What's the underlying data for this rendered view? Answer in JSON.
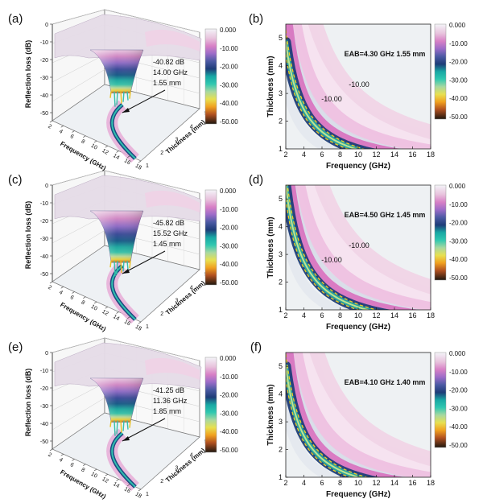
{
  "figure": {
    "panels": [
      "(a)",
      "(b)",
      "(c)",
      "(d)",
      "(e)",
      "(f)"
    ]
  },
  "colorbar": {
    "ticks": [
      "0.000",
      "-10.00",
      "-20.00",
      "-30.00",
      "-40.00",
      "-50.00"
    ]
  },
  "chart_data": [
    {
      "panel": "(a)",
      "type": "surface3d",
      "zlabel": "Reflection loss (dB)",
      "xlabel": "Frequency (GHz)",
      "ylabel": "Thickness (mm)",
      "zticks": [
        "0",
        "-10",
        "-20",
        "-30",
        "-40",
        "-50"
      ],
      "xticks": [
        "2",
        "4",
        "6",
        "8",
        "10",
        "12",
        "14",
        "16",
        "18"
      ],
      "yticks": [
        "1",
        "2",
        "3",
        "4",
        "5"
      ],
      "annotation": [
        "-40.82 dB",
        "14.00 GHz",
        "1.55 mm"
      ],
      "min_rl": -40.82,
      "freq": 14.0,
      "thickness": 1.55,
      "zlim": [
        -50,
        0
      ]
    },
    {
      "panel": "(b)",
      "type": "heatmap",
      "xlabel": "Frequency (GHz)",
      "ylabel": "Thickness (mm)",
      "xticks": [
        "2",
        "4",
        "6",
        "8",
        "10",
        "12",
        "14",
        "16",
        "18"
      ],
      "yticks": [
        "1",
        "2",
        "3",
        "4",
        "5"
      ],
      "xlim": [
        2,
        18
      ],
      "ylim": [
        1,
        5.5
      ],
      "eab": "EAB=4.30 GHz 1.55 mm",
      "contour_labels": [
        "-10.00",
        "-10.00"
      ],
      "curve_k": 9.7,
      "valley": -40.82
    },
    {
      "panel": "(c)",
      "type": "surface3d",
      "zlabel": "Reflection loss (dB)",
      "xlabel": "Frequency (GHz)",
      "ylabel": "Thickness (mm)",
      "zticks": [
        "0",
        "-10",
        "-20",
        "-30",
        "-40",
        "-50"
      ],
      "xticks": [
        "2",
        "4",
        "6",
        "8",
        "10",
        "12",
        "14",
        "16",
        "18"
      ],
      "yticks": [
        "1",
        "2",
        "3",
        "4",
        "5"
      ],
      "annotation": [
        "-45.82 dB",
        "15.52 GHz",
        "1.45 mm"
      ],
      "min_rl": -45.82,
      "freq": 15.52,
      "thickness": 1.45,
      "zlim": [
        -50,
        0
      ]
    },
    {
      "panel": "(d)",
      "type": "heatmap",
      "xlabel": "Frequency (GHz)",
      "ylabel": "Thickness (mm)",
      "xticks": [
        "2",
        "4",
        "6",
        "8",
        "10",
        "12",
        "14",
        "16",
        "18"
      ],
      "yticks": [
        "1",
        "2",
        "3",
        "4",
        "5"
      ],
      "xlim": [
        2,
        18
      ],
      "ylim": [
        1,
        5.5
      ],
      "eab": "EAB=4.50 GHz 1.45 mm",
      "contour_labels": [
        "-10.00",
        "-10.00"
      ],
      "curve_k": 11.0,
      "valley": -45.82
    },
    {
      "panel": "(e)",
      "type": "surface3d",
      "zlabel": "Reflection loss (dB)",
      "xlabel": "Frequency (GHz)",
      "ylabel": "Thickness (mm)",
      "zticks": [
        "0",
        "-10",
        "-20",
        "-30",
        "-40",
        "-50"
      ],
      "xticks": [
        "2",
        "4",
        "6",
        "8",
        "10",
        "12",
        "14",
        "16",
        "18"
      ],
      "yticks": [
        "1",
        "2",
        "3",
        "4",
        "5"
      ],
      "annotation": [
        "-41.25 dB",
        "11.36 GHz",
        "1.85 mm"
      ],
      "min_rl": -41.25,
      "freq": 11.36,
      "thickness": 1.85,
      "zlim": [
        -50,
        0
      ]
    },
    {
      "panel": "(f)",
      "type": "heatmap",
      "xlabel": "Frequency (GHz)",
      "ylabel": "Thickness (mm)",
      "xticks": [
        "2",
        "4",
        "6",
        "8",
        "10",
        "12",
        "14",
        "16",
        "18"
      ],
      "yticks": [
        "1",
        "2",
        "3",
        "4",
        "5"
      ],
      "xlim": [
        2,
        18
      ],
      "ylim": [
        1,
        5.5
      ],
      "eab": "EAB=4.10 GHz 1.40 mm",
      "contour_labels": [],
      "curve_k": 10.0,
      "valley": -41.25
    }
  ]
}
